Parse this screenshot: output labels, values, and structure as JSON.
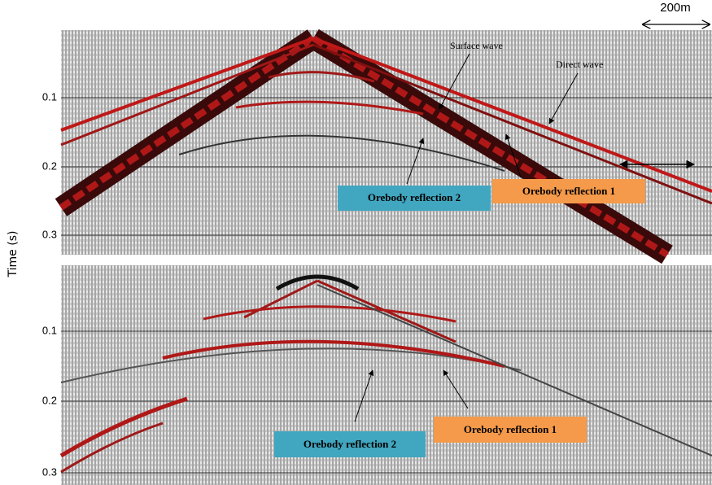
{
  "scale_bar": "200m",
  "y_axis_label": "Time (s)",
  "panels": [
    {
      "yticks": [
        0.1,
        0.2,
        0.3
      ],
      "annotations": [
        "Surface wave",
        "Direct wave"
      ],
      "labels": [
        "Orebody reflection 2",
        "Orebody reflection 1"
      ]
    },
    {
      "yticks": [
        0.1,
        0.2,
        0.3
      ],
      "labels": [
        "Orebody reflection 2",
        "Orebody reflection 1"
      ]
    }
  ]
}
